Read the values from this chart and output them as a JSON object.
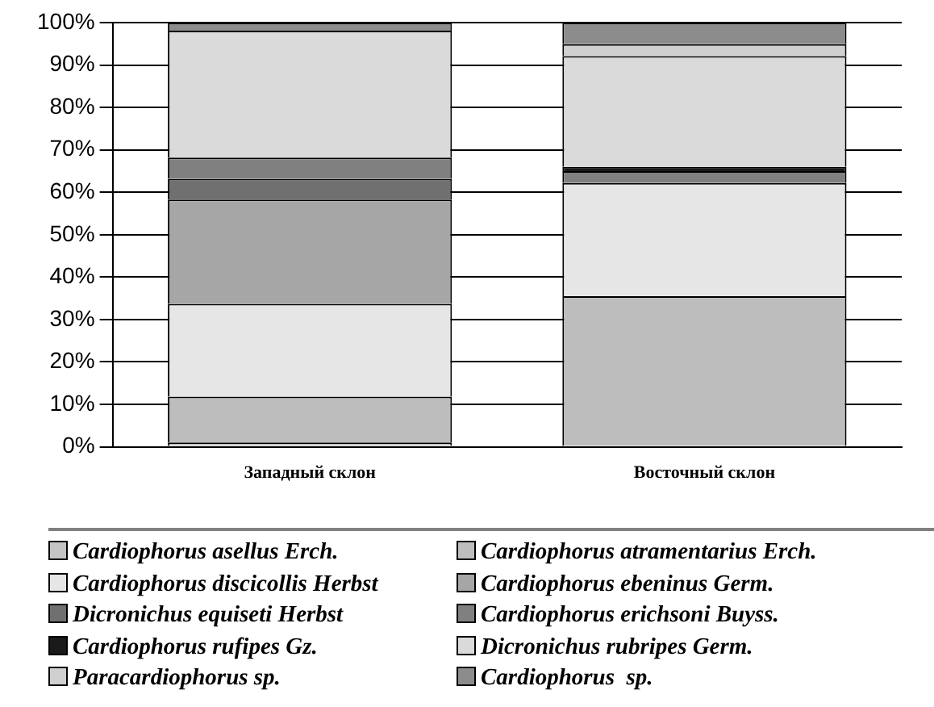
{
  "chart_data": {
    "type": "bar",
    "stacked": true,
    "categories": [
      "Западный склон",
      "Восточный склон"
    ],
    "series": [
      {
        "name": "Cardiophorus asellus Erch.",
        "color": "#c4c4c4",
        "values": [
          1,
          0
        ]
      },
      {
        "name": "Cardiophorus atramentarius Erch.",
        "color": "#bdbdbd",
        "values": [
          10.8,
          35.5
        ]
      },
      {
        "name": "Cardiophorus discicollis Herbst",
        "color": "#e6e6e6",
        "values": [
          21.9,
          26.7
        ]
      },
      {
        "name": "Cardiophorus ebeninus Germ.",
        "color": "#a6a6a6",
        "values": [
          24.6,
          0
        ]
      },
      {
        "name": "Dicronichus equiseti Herbst",
        "color": "#707070",
        "values": [
          4.9,
          0
        ]
      },
      {
        "name": "Cardiophorus erichsoni Buyss.",
        "color": "#808080",
        "values": [
          5,
          2.8
        ]
      },
      {
        "name": "Cardiophorus rufipes Gz.",
        "color": "#1a1a1a",
        "values": [
          0,
          1
        ]
      },
      {
        "name": "Dicronichus rubripes Germ.",
        "color": "#dadada",
        "values": [
          29.9,
          26.1
        ]
      },
      {
        "name": "Paracardiophorus sp.",
        "color": "#d0d0d0",
        "values": [
          0,
          2.8
        ]
      },
      {
        "name": "Cardiophorus  sp.",
        "color": "#8c8c8c",
        "values": [
          1.9,
          5.1
        ]
      }
    ],
    "ylim": [
      0,
      100
    ],
    "yticks": [
      {
        "value": 0,
        "label": "0%"
      },
      {
        "value": 10,
        "label": "10%"
      },
      {
        "value": 20,
        "label": "20%"
      },
      {
        "value": 30,
        "label": "30%"
      },
      {
        "value": 40,
        "label": "40%"
      },
      {
        "value": 50,
        "label": "50%"
      },
      {
        "value": 60,
        "label": "60%"
      },
      {
        "value": 70,
        "label": "70%"
      },
      {
        "value": 80,
        "label": "80%"
      },
      {
        "value": 90,
        "label": "90%"
      },
      {
        "value": 100,
        "label": "100%"
      }
    ],
    "grid": "y",
    "legend": "bottom"
  }
}
